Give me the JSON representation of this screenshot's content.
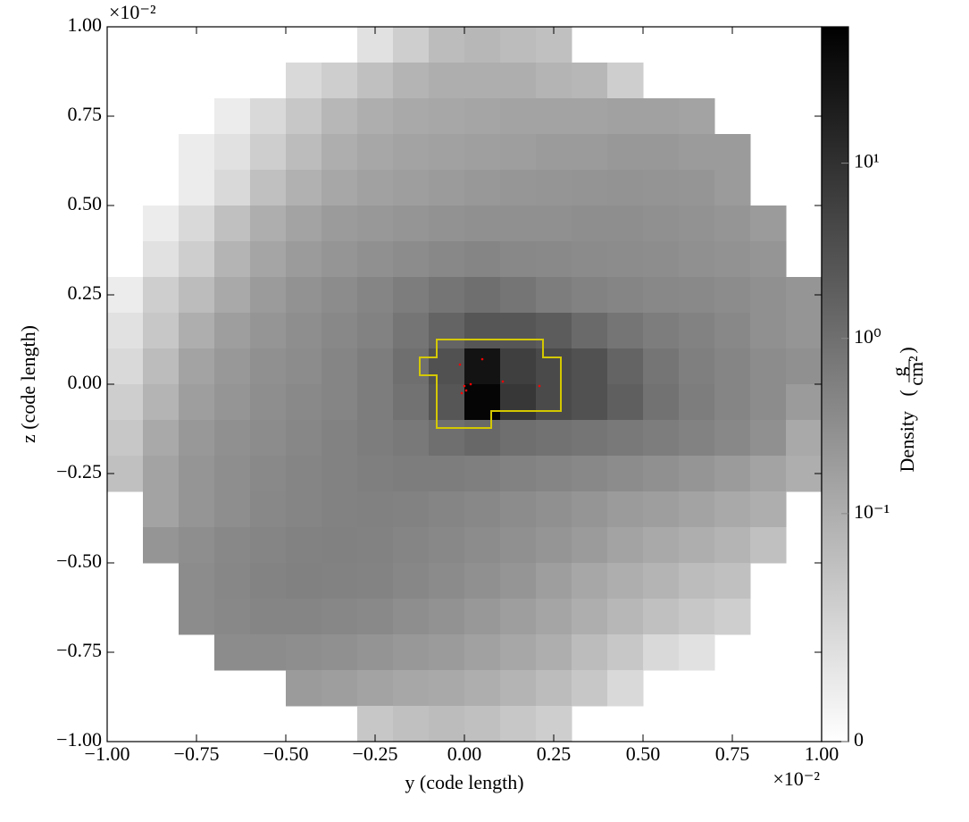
{
  "chart_data": {
    "type": "heatmap",
    "xlabel": "y  (code length)",
    "ylabel": "z  (code length)",
    "x_offset": "×10⁻²",
    "y_offset": "×10⁻²",
    "xlim": [
      -1,
      1
    ],
    "ylim": [
      -1,
      1
    ],
    "xticks": [
      {
        "value": -1,
        "label": "−1.00"
      },
      {
        "value": -0.75,
        "label": "−0.75"
      },
      {
        "value": -0.5,
        "label": "−0.50"
      },
      {
        "value": -0.25,
        "label": "−0.25"
      },
      {
        "value": 0,
        "label": "0.00"
      },
      {
        "value": 0.25,
        "label": "0.25"
      },
      {
        "value": 0.5,
        "label": "0.50"
      },
      {
        "value": 0.75,
        "label": "0.75"
      },
      {
        "value": 1,
        "label": "1.00"
      }
    ],
    "yticks": [
      {
        "value": -1,
        "label": "−1.00"
      },
      {
        "value": -0.75,
        "label": "−0.75"
      },
      {
        "value": -0.5,
        "label": "−0.50"
      },
      {
        "value": -0.25,
        "label": "−0.25"
      },
      {
        "value": 0,
        "label": "0.00"
      },
      {
        "value": 0.25,
        "label": "0.25"
      },
      {
        "value": 0.5,
        "label": "0.50"
      },
      {
        "value": 0.75,
        "label": "0.75"
      },
      {
        "value": 1,
        "label": "1.00"
      }
    ],
    "x_edges": [
      -1,
      -0.9,
      -0.8,
      -0.7,
      -0.6,
      -0.5,
      -0.4,
      -0.3,
      -0.2,
      -0.1,
      0,
      0.1,
      0.2,
      0.3,
      0.4,
      0.5,
      0.6,
      0.7,
      0.8,
      0.9,
      1
    ],
    "y_edges": [
      1,
      0.9,
      0.8,
      0.7,
      0.6,
      0.5,
      0.4,
      0.3,
      0.2,
      0.1,
      0,
      -0.1,
      -0.2,
      -0.3,
      -0.4,
      -0.5,
      -0.6,
      -0.7,
      -0.8,
      -0.9,
      -1
    ],
    "colormap": "gray_r",
    "color_scale": "log",
    "clim": [
      0.005,
      60
    ],
    "colorbar_ticks": [
      {
        "value": 0.005,
        "label": "0"
      },
      {
        "value": 0.1,
        "label": "10⁻¹"
      },
      {
        "value": 1,
        "label": "10⁰"
      },
      {
        "value": 10,
        "label": "10¹"
      }
    ],
    "colorbar_label": "Density",
    "colorbar_units": {
      "open": "(",
      "numerator": "g",
      "denominator": "cm²",
      "close": ")"
    },
    "values": [
      [
        null,
        null,
        null,
        null,
        null,
        null,
        null,
        0.015,
        0.03,
        0.06,
        0.07,
        0.06,
        0.05,
        null,
        null,
        null,
        null,
        null,
        null,
        null
      ],
      [
        null,
        null,
        null,
        null,
        null,
        0.02,
        0.03,
        0.05,
        0.08,
        0.1,
        0.1,
        0.1,
        0.08,
        0.07,
        0.03,
        null,
        null,
        null,
        null,
        null
      ],
      [
        null,
        null,
        null,
        0.01,
        0.02,
        0.04,
        0.07,
        0.1,
        0.12,
        0.13,
        0.14,
        0.15,
        0.15,
        0.15,
        0.16,
        0.16,
        0.15,
        null,
        null,
        null
      ],
      [
        null,
        null,
        0.01,
        0.015,
        0.03,
        0.06,
        0.1,
        0.13,
        0.15,
        0.16,
        0.17,
        0.18,
        0.2,
        0.2,
        0.22,
        0.22,
        0.2,
        0.2,
        null,
        null
      ],
      [
        null,
        null,
        0.01,
        0.02,
        0.05,
        0.09,
        0.13,
        0.16,
        0.18,
        0.2,
        0.22,
        0.24,
        0.25,
        0.26,
        0.27,
        0.26,
        0.25,
        0.2,
        null,
        null
      ],
      [
        null,
        0.01,
        0.02,
        0.05,
        0.1,
        0.15,
        0.2,
        0.22,
        0.25,
        0.28,
        0.3,
        0.3,
        0.3,
        0.32,
        0.32,
        0.3,
        0.28,
        0.25,
        0.2,
        null
      ],
      [
        null,
        0.015,
        0.03,
        0.08,
        0.14,
        0.2,
        0.25,
        0.3,
        0.35,
        0.4,
        0.45,
        0.4,
        0.38,
        0.36,
        0.35,
        0.33,
        0.3,
        0.28,
        0.25,
        null
      ],
      [
        0.01,
        0.03,
        0.06,
        0.12,
        0.2,
        0.28,
        0.35,
        0.45,
        0.6,
        0.8,
        1.0,
        0.8,
        0.6,
        0.5,
        0.45,
        0.4,
        0.38,
        0.35,
        0.3,
        0.25
      ],
      [
        0.015,
        0.04,
        0.1,
        0.18,
        0.25,
        0.32,
        0.4,
        0.5,
        0.8,
        1.5,
        2.5,
        2.5,
        2.0,
        1.2,
        0.8,
        0.6,
        0.5,
        0.4,
        0.3,
        0.25
      ],
      [
        0.02,
        0.06,
        0.15,
        0.22,
        0.3,
        0.35,
        0.45,
        0.6,
        1.0,
        3.0,
        30,
        6,
        4,
        3,
        1.5,
        0.8,
        0.55,
        0.45,
        0.35,
        0.3
      ],
      [
        0.03,
        0.08,
        0.18,
        0.25,
        0.32,
        0.38,
        0.45,
        0.6,
        0.9,
        2.5,
        50,
        8,
        4,
        3,
        1.8,
        0.9,
        0.6,
        0.45,
        0.35,
        0.2
      ],
      [
        0.04,
        0.12,
        0.22,
        0.3,
        0.35,
        0.42,
        0.5,
        0.6,
        0.7,
        1.0,
        1.3,
        1.0,
        0.9,
        0.8,
        0.7,
        0.6,
        0.5,
        0.4,
        0.3,
        0.12
      ],
      [
        0.05,
        0.15,
        0.25,
        0.32,
        0.38,
        0.45,
        0.5,
        0.55,
        0.6,
        0.6,
        0.55,
        0.5,
        0.45,
        0.4,
        0.35,
        0.3,
        0.25,
        0.2,
        0.15,
        0.1
      ],
      [
        null,
        0.15,
        0.25,
        0.32,
        0.4,
        0.45,
        0.5,
        0.52,
        0.5,
        0.45,
        0.4,
        0.35,
        0.3,
        0.25,
        0.2,
        0.18,
        0.15,
        0.12,
        0.1,
        null
      ],
      [
        null,
        0.25,
        0.32,
        0.4,
        0.45,
        0.5,
        0.52,
        0.5,
        0.45,
        0.4,
        0.35,
        0.3,
        0.25,
        0.2,
        0.15,
        0.12,
        0.1,
        0.08,
        0.05,
        null
      ],
      [
        null,
        null,
        0.35,
        0.42,
        0.48,
        0.52,
        0.5,
        0.48,
        0.42,
        0.36,
        0.3,
        0.25,
        0.18,
        0.13,
        0.1,
        0.08,
        0.06,
        0.05,
        null,
        null
      ],
      [
        null,
        null,
        0.35,
        0.4,
        0.45,
        0.45,
        0.42,
        0.38,
        0.32,
        0.28,
        0.22,
        0.18,
        0.14,
        0.1,
        0.07,
        0.05,
        0.04,
        0.03,
        null,
        null
      ],
      [
        null,
        null,
        null,
        0.35,
        0.35,
        0.32,
        0.3,
        0.26,
        0.22,
        0.2,
        0.16,
        0.13,
        0.1,
        0.06,
        0.04,
        0.02,
        0.015,
        null,
        null,
        null
      ],
      [
        null,
        null,
        null,
        null,
        null,
        0.2,
        0.18,
        0.15,
        0.13,
        0.12,
        0.1,
        0.08,
        0.06,
        0.04,
        0.02,
        null,
        null,
        null,
        null,
        null
      ],
      [
        null,
        null,
        null,
        null,
        null,
        null,
        null,
        0.04,
        0.05,
        0.06,
        0.05,
        0.04,
        0.03,
        null,
        null,
        null,
        null,
        null,
        null,
        null
      ]
    ],
    "contour": {
      "color": "#d4c800",
      "x": [
        -0.0775,
        0.22,
        0.22,
        0.27,
        0.27,
        0.075,
        0.075,
        -0.0775,
        -0.0775,
        -0.125,
        -0.125,
        -0.0775
      ],
      "y": [
        0.125,
        0.125,
        0.075,
        0.075,
        -0.075,
        -0.075,
        -0.1225,
        -0.1225,
        0.025,
        0.025,
        0.075,
        0.075
      ]
    },
    "particles": {
      "color": "#ff0000",
      "x": [
        -0.0125,
        0.05,
        0,
        0.005,
        -0.0075,
        0.1075,
        0.21,
        0.0175
      ],
      "y": [
        0.055,
        0.07,
        -0.005,
        -0.0175,
        -0.025,
        0.0075,
        -0.005,
        0
      ]
    }
  }
}
